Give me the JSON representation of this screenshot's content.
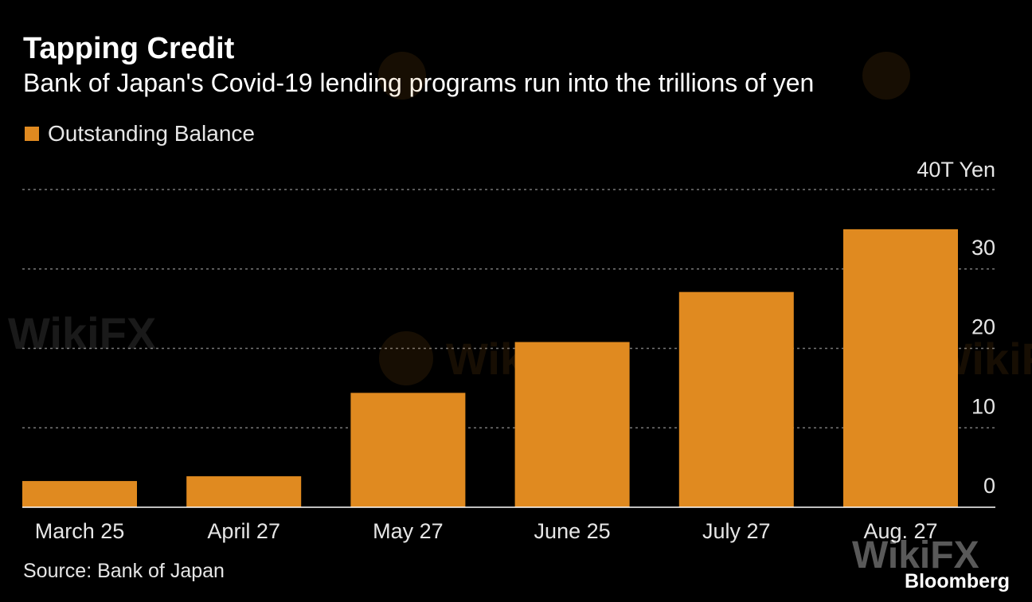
{
  "title": "Tapping Credit",
  "subtitle": "Bank of Japan's Covid-19 lending programs run into the trillions of yen",
  "source": "Source: Bank of Japan",
  "brand": "Bloomberg",
  "watermark_text": "WikiFX",
  "colors": {
    "background": "#000000",
    "bar": "#e08a20",
    "grid": "#777777",
    "text": "#e6e6e6"
  },
  "chart_data": {
    "type": "bar",
    "title": "Tapping Credit",
    "subtitle": "Bank of Japan's Covid-19 lending programs run into the trillions of yen",
    "categories": [
      "March 25",
      "April 27",
      "May 27",
      "June 25",
      "July 27",
      "Aug. 27"
    ],
    "series": [
      {
        "name": "Outstanding Balance",
        "values": [
          3.3,
          3.9,
          14.4,
          20.8,
          27.1,
          35.0
        ]
      }
    ],
    "ylim": [
      0,
      40
    ],
    "yticks": [
      0,
      10,
      20,
      30,
      40
    ],
    "ytick_labels": [
      "0",
      "10",
      "20",
      "30",
      "40T Yen"
    ],
    "yaxis_side": "right",
    "grid": true,
    "legend_position": "top-left",
    "xlabel": "",
    "ylabel": ""
  }
}
